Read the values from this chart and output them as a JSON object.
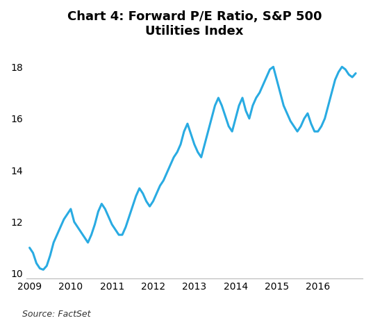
{
  "title": "Chart 4: Forward P/E Ratio, S&P 500\nUtilities Index",
  "source": "Source: FactSet",
  "line_color": "#29ABE2",
  "background_color": "#ffffff",
  "ylim": [
    9.8,
    18.8
  ],
  "yticks": [
    10,
    12,
    14,
    16,
    18
  ],
  "xtick_labels": [
    "2009",
    "2010",
    "2011",
    "2012",
    "2013",
    "2014",
    "2015",
    "2016"
  ],
  "line_width": 2.2,
  "y": [
    11.0,
    10.8,
    10.4,
    10.2,
    10.15,
    10.3,
    10.7,
    11.2,
    11.5,
    11.8,
    12.1,
    12.3,
    12.5,
    12.0,
    11.8,
    11.6,
    11.4,
    11.2,
    11.5,
    11.9,
    12.4,
    12.7,
    12.5,
    12.2,
    11.9,
    11.7,
    11.5,
    11.5,
    11.8,
    12.2,
    12.6,
    13.0,
    13.3,
    13.1,
    12.8,
    12.6,
    12.8,
    13.1,
    13.4,
    13.6,
    13.9,
    14.2,
    14.5,
    14.7,
    15.0,
    15.5,
    15.8,
    15.4,
    15.0,
    14.7,
    14.5,
    15.0,
    15.5,
    16.0,
    16.5,
    16.8,
    16.5,
    16.1,
    15.7,
    15.5,
    16.0,
    16.5,
    16.8,
    16.3,
    16.0,
    16.5,
    16.8,
    17.0,
    17.3,
    17.6,
    17.9,
    18.0,
    17.5,
    17.0,
    16.5,
    16.2,
    15.9,
    15.7,
    15.5,
    15.7,
    16.0,
    16.2,
    15.8,
    15.5,
    15.5,
    15.7,
    16.0,
    16.5,
    17.0,
    17.5,
    17.8,
    18.0,
    17.9,
    17.7,
    17.6,
    17.75
  ],
  "xtick_positions": [
    0,
    12,
    24,
    36,
    48,
    60,
    72,
    84
  ]
}
